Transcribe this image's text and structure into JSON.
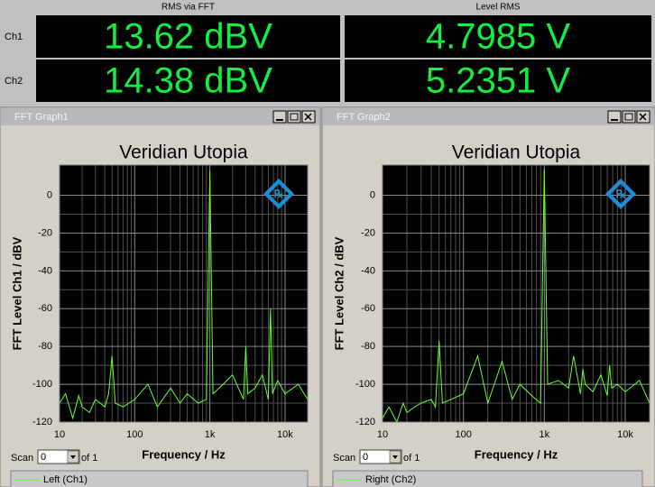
{
  "header": {
    "columns": [
      "RMS via FFT",
      "Level RMS"
    ],
    "rows": [
      {
        "label": "Ch1",
        "values": [
          "13.62 dBV",
          "4.7985 V"
        ]
      },
      {
        "label": "Ch2",
        "values": [
          "14.38 dBV",
          "5.2351 V"
        ]
      }
    ]
  },
  "windows": [
    {
      "title": "FFT Graph1",
      "scan_label": "Scan",
      "scan_value": "0",
      "scan_of": "of 1"
    },
    {
      "title": "FFT Graph2",
      "scan_label": "Scan",
      "scan_value": "0",
      "scan_of": "of 1"
    }
  ],
  "chart_data": [
    {
      "type": "line",
      "title": "Veridian Utopia",
      "xlabel": "Frequency / Hz",
      "ylabel": "FFT Level Ch1 / dBV",
      "log_x": true,
      "grid": true,
      "xlim": [
        10,
        20000
      ],
      "xticks": [
        10,
        100,
        {
          "value": 1000,
          "label": "1k"
        },
        {
          "value": 10000,
          "label": "10k"
        }
      ],
      "ylim": [
        -120,
        16
      ],
      "yticks": [
        -120,
        -100,
        -80,
        -60,
        -40,
        -20,
        0
      ],
      "x": [
        10,
        12,
        15,
        18,
        20,
        25,
        30,
        40,
        45,
        50,
        55,
        70,
        100,
        150,
        200,
        300,
        400,
        500,
        700,
        900,
        1000,
        1100,
        1500,
        2000,
        2800,
        3000,
        3200,
        4000,
        5000,
        6000,
        6400,
        6800,
        8000,
        10000,
        15000,
        20000
      ],
      "series": [
        {
          "name": "Left (Ch1)",
          "color": "#66ff33",
          "values": [
            -110,
            -105,
            -118,
            -106,
            -112,
            -115,
            -108,
            -112,
            -105,
            -85,
            -110,
            -112,
            -108,
            -100,
            -112,
            -102,
            -110,
            -105,
            -110,
            -108,
            13,
            -105,
            -100,
            -95,
            -108,
            -80,
            -105,
            -102,
            -95,
            -108,
            -60,
            -105,
            -98,
            -105,
            -100,
            -108
          ]
        }
      ]
    },
    {
      "type": "line",
      "title": "Veridian Utopia",
      "xlabel": "Frequency / Hz",
      "ylabel": "FFT Level Ch2 / dBV",
      "log_x": true,
      "grid": true,
      "xlim": [
        10,
        20000
      ],
      "xticks": [
        10,
        100,
        {
          "value": 1000,
          "label": "1k"
        },
        {
          "value": 10000,
          "label": "10k"
        }
      ],
      "ylim": [
        -120,
        16
      ],
      "yticks": [
        -120,
        -100,
        -80,
        -60,
        -40,
        -20,
        0
      ],
      "x": [
        10,
        12,
        15,
        18,
        20,
        25,
        30,
        40,
        45,
        50,
        55,
        70,
        100,
        150,
        200,
        300,
        400,
        500,
        700,
        900,
        1000,
        1100,
        1500,
        2000,
        2300,
        2800,
        3000,
        3200,
        4000,
        5000,
        6000,
        6400,
        6800,
        8000,
        10000,
        15000,
        20000
      ],
      "series": [
        {
          "name": "Right (Ch2)",
          "color": "#66ff33",
          "values": [
            -118,
            -112,
            -120,
            -110,
            -115,
            -112,
            -110,
            -108,
            -112,
            -77,
            -110,
            -108,
            -105,
            -85,
            -110,
            -88,
            -108,
            -100,
            -106,
            -110,
            14,
            -100,
            -98,
            -102,
            -85,
            -105,
            -92,
            -100,
            -104,
            -95,
            -106,
            -90,
            -102,
            -100,
            -104,
            -98,
            -110
          ]
        }
      ]
    }
  ]
}
